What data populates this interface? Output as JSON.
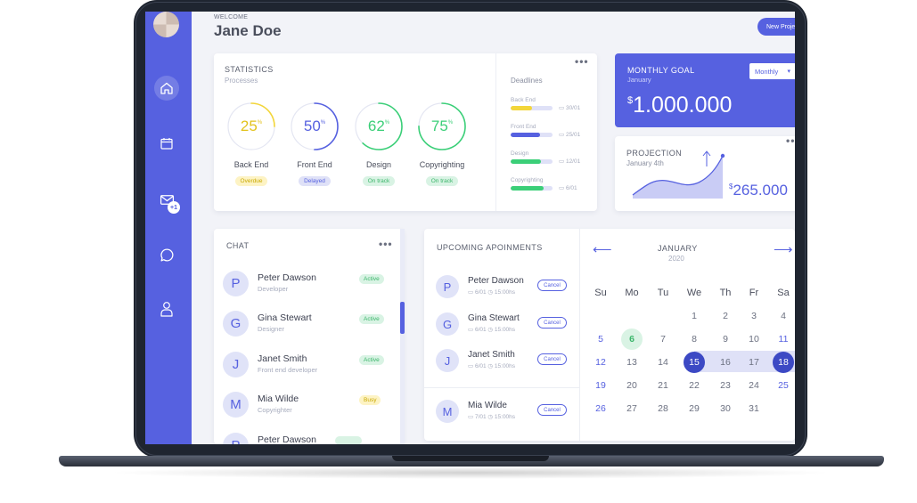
{
  "header": {
    "welcome": "WELCOME",
    "user_name": "Jane Doe",
    "new_project_label": "New Project"
  },
  "sidebar": {
    "items": [
      {
        "icon": "home-icon",
        "active": true
      },
      {
        "icon": "calendar-icon",
        "active": false
      },
      {
        "icon": "mail-icon",
        "active": false,
        "badge": "+1"
      },
      {
        "icon": "chat-bubble-icon",
        "active": false
      },
      {
        "icon": "user-icon",
        "active": false
      }
    ]
  },
  "statistics": {
    "title": "STATISTICS",
    "subtitle": "Processes",
    "items": [
      {
        "value": "25",
        "unit": "%",
        "label": "Back End",
        "status": "Overdue",
        "color": "#f3d63a",
        "pill_bg": "#fdf3c4",
        "pill_fg": "#c9a800",
        "percent": 25
      },
      {
        "value": "50",
        "unit": "%",
        "label": "Front End",
        "status": "Delayed",
        "color": "#5661e0",
        "pill_bg": "#dfe1f7",
        "pill_fg": "#5661e0",
        "percent": 50
      },
      {
        "value": "62",
        "unit": "%",
        "label": "Design",
        "status": "On track",
        "color": "#3bcf78",
        "pill_bg": "#d9f3e4",
        "pill_fg": "#3bb56a",
        "percent": 62
      },
      {
        "value": "75",
        "unit": "%",
        "label": "Copyrighting",
        "status": "On track",
        "color": "#3bcf78",
        "pill_bg": "#d9f3e4",
        "pill_fg": "#3bb56a",
        "percent": 75
      }
    ]
  },
  "deadlines": {
    "title": "Deadlines",
    "items": [
      {
        "label": "Back End",
        "date": "30/01",
        "percent": 50,
        "color": "#f3d63a"
      },
      {
        "label": "Front End",
        "date": "25/01",
        "percent": 70,
        "color": "#5661e0"
      },
      {
        "label": "Design",
        "date": "12/01",
        "percent": 72,
        "color": "#3bcf78"
      },
      {
        "label": "Copyrighting",
        "date": "6/01",
        "percent": 78,
        "color": "#3bcf78"
      }
    ]
  },
  "monthly_goal": {
    "title": "MONTHLY GOAL",
    "subtitle": "January",
    "currency": "$",
    "amount": "1.000.000",
    "select_value": "Monthly"
  },
  "projection": {
    "title": "PROJECTION",
    "subtitle": "January 4th",
    "currency": "$",
    "amount": "265.000"
  },
  "chat": {
    "title": "CHAT",
    "items": [
      {
        "initial": "P",
        "name": "Peter Dawson",
        "role": "Developer",
        "status": "Active",
        "status_bg": "#d9f3e4",
        "status_fg": "#3bb56a"
      },
      {
        "initial": "G",
        "name": "Gina Stewart",
        "role": "Designer",
        "status": "Active",
        "status_bg": "#d9f3e4",
        "status_fg": "#3bb56a"
      },
      {
        "initial": "J",
        "name": "Janet Smith",
        "role": "Front end developer",
        "status": "Active",
        "status_bg": "#d9f3e4",
        "status_fg": "#3bb56a"
      },
      {
        "initial": "M",
        "name": "Mia Wilde",
        "role": "Copyrighter",
        "status": "Busy",
        "status_bg": "#fdf3c4",
        "status_fg": "#c9a800"
      },
      {
        "initial": "P",
        "name": "Peter Dawson",
        "role": "",
        "status": "",
        "status_bg": "#d9f3e4",
        "status_fg": "#3bb56a"
      }
    ]
  },
  "appointments": {
    "title": "UPCOMING APOINMENTS",
    "cancel_label": "Cancel",
    "items": [
      {
        "initial": "P",
        "name": "Peter Dawson",
        "date": "6/01",
        "time": "15:00hs"
      },
      {
        "initial": "G",
        "name": "Gina Stewart",
        "date": "6/01",
        "time": "15:00hs"
      },
      {
        "initial": "J",
        "name": "Janet Smith",
        "date": "6/01",
        "time": "15:00hs"
      },
      {
        "initial": "M",
        "name": "Mia Wilde",
        "date": "7/01",
        "time": "15:00hs"
      }
    ]
  },
  "calendar": {
    "month": "JANUARY",
    "year": "2020",
    "weekdays": [
      "Su",
      "Mo",
      "Tu",
      "We",
      "Th",
      "Fr",
      "Sa"
    ],
    "weeks": [
      [
        "",
        "",
        "",
        "1",
        "2",
        "3",
        "4"
      ],
      [
        "5",
        "6",
        "7",
        "8",
        "9",
        "10",
        "11"
      ],
      [
        "12",
        "13",
        "14",
        "15",
        "16",
        "17",
        "18"
      ],
      [
        "19",
        "20",
        "21",
        "22",
        "23",
        "24",
        "25"
      ],
      [
        "26",
        "27",
        "28",
        "29",
        "30",
        "31",
        ""
      ]
    ],
    "today": "6",
    "range_start": "15",
    "range_end": "18"
  }
}
